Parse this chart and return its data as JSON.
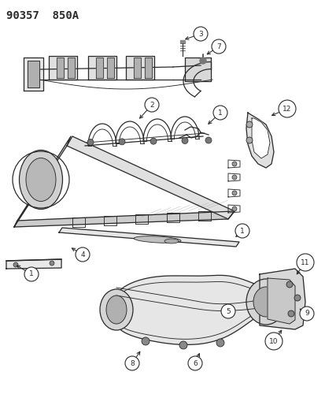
{
  "title": "90357  850A",
  "bg_color": "#ffffff",
  "line_color": "#2a2a2a",
  "fig_w": 4.14,
  "fig_h": 5.33,
  "dpi": 100
}
